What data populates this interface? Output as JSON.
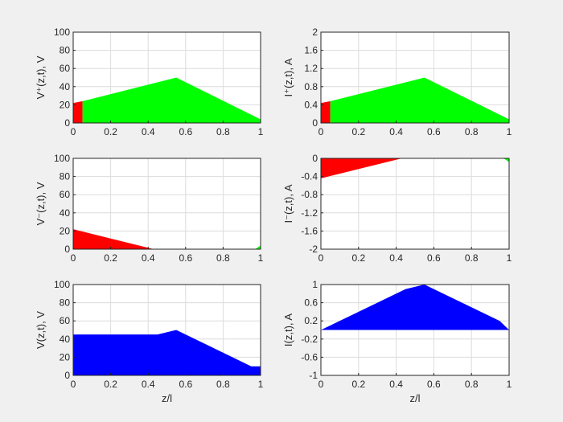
{
  "figure": {
    "background": "#f0f0f0"
  },
  "chart_data": [
    {
      "id": "vplus",
      "type": "area",
      "ylabel": "V⁺(z,t), V",
      "xlim": [
        0,
        1
      ],
      "ylim": [
        0,
        100
      ],
      "xticks": [
        0,
        0.2,
        0.4,
        0.6,
        0.8,
        1
      ],
      "xtick_labels": [
        "0",
        "0.2",
        "0.4",
        "0.6",
        "0.8",
        "1"
      ],
      "yticks": [
        0,
        20,
        40,
        60,
        80,
        100
      ],
      "ytick_labels": [
        "0",
        "20",
        "40",
        "60",
        "80",
        "100"
      ],
      "grid": true,
      "xlabel": "",
      "series": [
        {
          "color": "#ff0000",
          "x": [
            0,
            0.05
          ],
          "y": [
            22,
            24
          ]
        },
        {
          "color": "#00ff00",
          "x": [
            0.05,
            0.55,
            1.0
          ],
          "y": [
            24,
            50,
            4
          ]
        }
      ]
    },
    {
      "id": "iplus",
      "type": "area",
      "ylabel": "I⁺(z,t), A",
      "xlim": [
        0,
        1
      ],
      "ylim": [
        0,
        2
      ],
      "xticks": [
        0,
        0.2,
        0.4,
        0.6,
        0.8,
        1
      ],
      "xtick_labels": [
        "0",
        "0.2",
        "0.4",
        "0.6",
        "0.8",
        "1"
      ],
      "yticks": [
        0,
        0.4,
        0.8,
        1.2,
        1.6,
        2
      ],
      "ytick_labels": [
        "0",
        "0.4",
        "0.8",
        "1.2",
        "1.6",
        "2"
      ],
      "grid": true,
      "xlabel": "",
      "series": [
        {
          "color": "#ff0000",
          "x": [
            0,
            0.05
          ],
          "y": [
            0.44,
            0.48
          ]
        },
        {
          "color": "#00ff00",
          "x": [
            0.05,
            0.55,
            1.0
          ],
          "y": [
            0.48,
            1.0,
            0.08
          ]
        }
      ]
    },
    {
      "id": "vminus",
      "type": "area",
      "ylabel": "V⁻(z,t), V",
      "xlim": [
        0,
        1
      ],
      "ylim": [
        0,
        100
      ],
      "xticks": [
        0,
        0.2,
        0.4,
        0.6,
        0.8,
        1
      ],
      "xtick_labels": [
        "0",
        "0.2",
        "0.4",
        "0.6",
        "0.8",
        "1"
      ],
      "yticks": [
        0,
        20,
        40,
        60,
        80,
        100
      ],
      "ytick_labels": [
        "0",
        "20",
        "40",
        "60",
        "80",
        "100"
      ],
      "grid": true,
      "xlabel": "",
      "series": [
        {
          "color": "#ff0000",
          "x": [
            0,
            0.43
          ],
          "y": [
            22,
            0
          ]
        },
        {
          "color": "#00ff00",
          "x": [
            0.97,
            1.0
          ],
          "y": [
            0,
            4
          ]
        }
      ]
    },
    {
      "id": "iminus",
      "type": "area",
      "ylabel": "I⁻(z,t), A",
      "xlim": [
        0,
        1
      ],
      "ylim": [
        -2,
        0
      ],
      "xticks": [
        0,
        0.2,
        0.4,
        0.6,
        0.8,
        1
      ],
      "xtick_labels": [
        "0",
        "0.2",
        "0.4",
        "0.6",
        "0.8",
        "1"
      ],
      "yticks": [
        -2,
        -1.6,
        -1.2,
        -0.8,
        -0.4,
        0
      ],
      "ytick_labels": [
        "-2",
        "-1.6",
        "-1.2",
        "-0.8",
        "-0.4",
        "0"
      ],
      "grid": true,
      "xlabel": "",
      "series": [
        {
          "color": "#ff0000",
          "x": [
            0,
            0.43
          ],
          "y": [
            -0.44,
            0
          ]
        },
        {
          "color": "#00ff00",
          "x": [
            0.97,
            1.0
          ],
          "y": [
            0,
            -0.08
          ]
        }
      ]
    },
    {
      "id": "vtotal",
      "type": "area",
      "ylabel": "V(z,t), V",
      "xlim": [
        0,
        1
      ],
      "ylim": [
        0,
        100
      ],
      "xticks": [
        0,
        0.2,
        0.4,
        0.6,
        0.8,
        1
      ],
      "xtick_labels": [
        "0",
        "0.2",
        "0.4",
        "0.6",
        "0.8",
        "1"
      ],
      "yticks": [
        0,
        20,
        40,
        60,
        80,
        100
      ],
      "ytick_labels": [
        "0",
        "20",
        "40",
        "60",
        "80",
        "100"
      ],
      "grid": true,
      "xlabel": "z/l",
      "series": [
        {
          "color": "#0000ff",
          "x": [
            0,
            0.45,
            0.55,
            0.95,
            1.0
          ],
          "y": [
            45,
            45,
            50,
            10,
            10
          ]
        }
      ]
    },
    {
      "id": "itotal",
      "type": "area",
      "ylabel": "I(z,t), A",
      "xlim": [
        0,
        1
      ],
      "ylim": [
        -1,
        1
      ],
      "xticks": [
        0,
        0.2,
        0.4,
        0.6,
        0.8,
        1
      ],
      "xtick_labels": [
        "0",
        "0.2",
        "0.4",
        "0.6",
        "0.8",
        "1"
      ],
      "yticks": [
        -1,
        -0.6,
        -0.2,
        0.2,
        0.6,
        1
      ],
      "ytick_labels": [
        "-1",
        "-0.6",
        "-0.2",
        "0.2",
        "0.6",
        "1"
      ],
      "grid": true,
      "xlabel": "z/l",
      "series": [
        {
          "color": "#0000ff",
          "x": [
            0,
            0.45,
            0.55,
            0.95,
            1.0
          ],
          "y": [
            0,
            0.9,
            1.0,
            0.2,
            0
          ]
        }
      ]
    }
  ]
}
